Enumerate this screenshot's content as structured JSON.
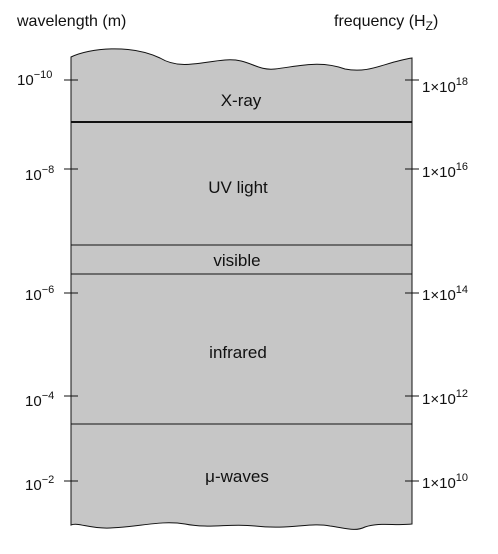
{
  "titles": {
    "wavelength": "wavelength (m)",
    "frequency_main": "frequency (H",
    "frequency_sub": "Z",
    "frequency_close": ")"
  },
  "bands": [
    {
      "name": "x-ray",
      "label": "X-ray"
    },
    {
      "name": "uv-light",
      "label": "UV light"
    },
    {
      "name": "visible",
      "label": "visible"
    },
    {
      "name": "infrared",
      "label": "infrared"
    },
    {
      "name": "microwaves",
      "label": "μ-waves"
    }
  ],
  "wavelength_ticks": [
    {
      "base": "10",
      "exp": "−10"
    },
    {
      "base": "10",
      "exp": "−8"
    },
    {
      "base": "10",
      "exp": "−6"
    },
    {
      "base": "10",
      "exp": "−4"
    },
    {
      "base": "10",
      "exp": "−2"
    }
  ],
  "frequency_ticks": [
    {
      "base": "1×10",
      "exp": "18"
    },
    {
      "base": "1×10",
      "exp": "16"
    },
    {
      "base": "1×10",
      "exp": "14"
    },
    {
      "base": "1×10",
      "exp": "12"
    },
    {
      "base": "1×10",
      "exp": "10"
    }
  ],
  "colors": {
    "fill": "#c6c6c6",
    "stroke": "#111111"
  }
}
